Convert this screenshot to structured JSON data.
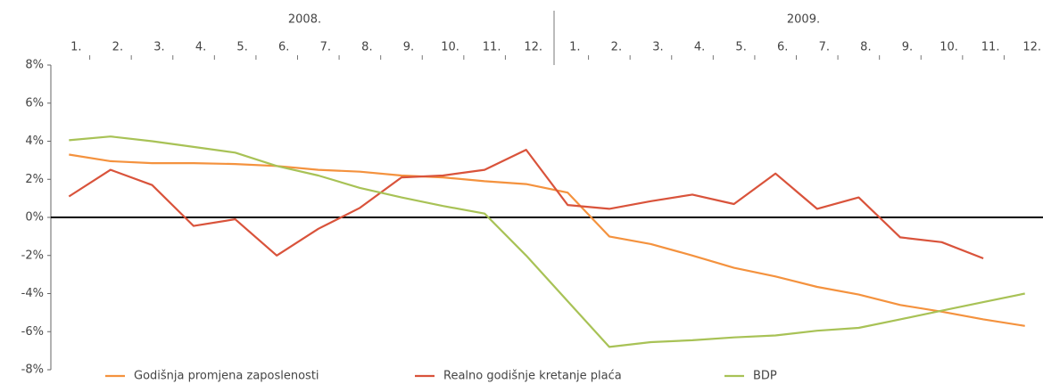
{
  "chart_data": {
    "type": "line",
    "years": [
      "2008.",
      "2009."
    ],
    "categories": [
      "1.",
      "2.",
      "3.",
      "4.",
      "5.",
      "6.",
      "7.",
      "8.",
      "9.",
      "10.",
      "11.",
      "12.",
      "1.",
      "2.",
      "3.",
      "4.",
      "5.",
      "6.",
      "7.",
      "8.",
      "9.",
      "10.",
      "11.",
      "12."
    ],
    "series": [
      {
        "name": "Godišnja promjena zaposlenosti",
        "color": "#f4923e",
        "values": [
          3.3,
          2.95,
          2.85,
          2.85,
          2.8,
          2.7,
          2.5,
          2.4,
          2.2,
          2.1,
          1.9,
          1.75,
          1.3,
          -1.0,
          -1.4,
          -2.0,
          -2.65,
          -3.1,
          -3.65,
          -4.05,
          -4.6,
          -4.95,
          -5.35,
          -5.7
        ]
      },
      {
        "name": "Realno godišnje kretanje plaća",
        "color": "#d9533b",
        "values": [
          1.1,
          2.5,
          1.7,
          -0.45,
          -0.1,
          -2.0,
          -0.6,
          0.5,
          2.1,
          2.2,
          2.5,
          3.55,
          0.65,
          0.45,
          0.85,
          1.2,
          0.7,
          2.3,
          0.45,
          1.05,
          -1.05,
          -1.3,
          -2.15,
          null
        ]
      },
      {
        "name": "BDP",
        "color": "#a8c256",
        "values": [
          4.05,
          4.25,
          4.0,
          3.7,
          3.4,
          2.7,
          2.2,
          1.55,
          1.05,
          0.6,
          0.2,
          -2.0,
          -4.4,
          -6.8,
          -6.55,
          -6.45,
          -6.3,
          -6.2,
          -5.95,
          -5.8,
          -5.35,
          -4.9,
          -4.45,
          -4.0
        ]
      }
    ],
    "ylim": [
      -8,
      8
    ],
    "yticks": [
      {
        "value": -8,
        "label": "-8%"
      },
      {
        "value": -6,
        "label": "-6%"
      },
      {
        "value": -4,
        "label": "-4%"
      },
      {
        "value": -2,
        "label": "-2%"
      },
      {
        "value": 0,
        "label": "0%"
      },
      {
        "value": 2,
        "label": "2%"
      },
      {
        "value": 4,
        "label": "4%"
      },
      {
        "value": 6,
        "label": "6%"
      },
      {
        "value": 8,
        "label": "8%"
      }
    ],
    "legend": "bottom"
  }
}
